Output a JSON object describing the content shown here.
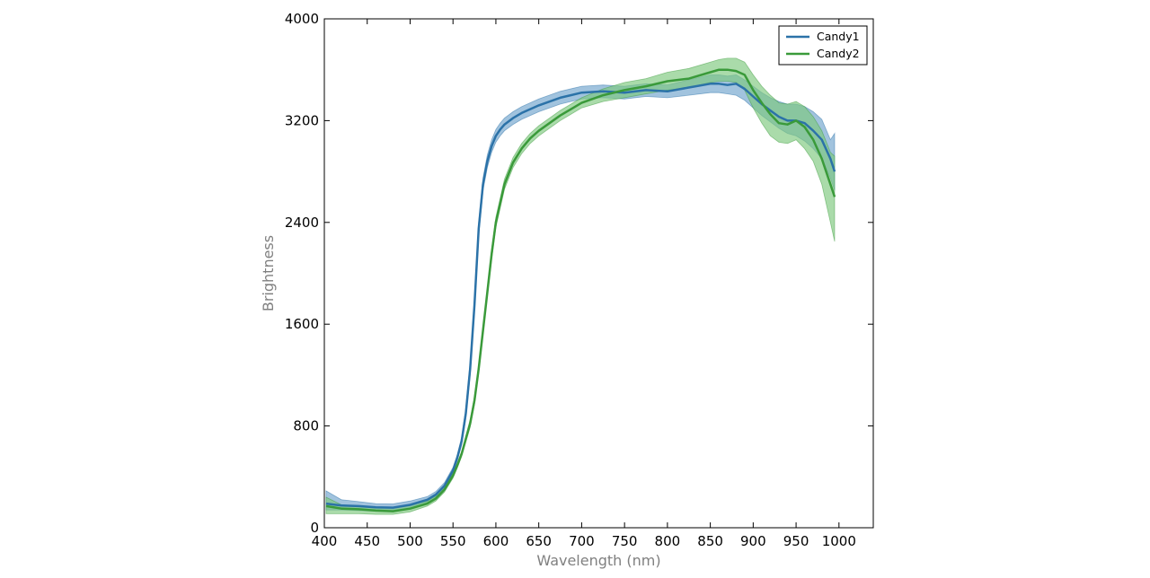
{
  "chart_data": {
    "type": "line",
    "title": "",
    "xlabel": "Wavelength (nm)",
    "ylabel": "Brightness",
    "xlim": [
      400,
      1040
    ],
    "ylim": [
      0,
      4000
    ],
    "x_ticks": [
      400,
      450,
      500,
      550,
      600,
      650,
      700,
      750,
      800,
      850,
      900,
      950,
      1000
    ],
    "y_ticks": [
      0,
      800,
      1600,
      2400,
      3200,
      4000
    ],
    "grid": false,
    "legend_position": "top-right",
    "band": "shaded band around each series line",
    "series": [
      {
        "name": "Candy1",
        "color": "#2b72a8",
        "band_color": "#6fa3cd",
        "x": [
          402,
          420,
          440,
          460,
          480,
          500,
          520,
          530,
          540,
          550,
          555,
          560,
          565,
          570,
          575,
          580,
          585,
          590,
          595,
          600,
          605,
          610,
          620,
          630,
          650,
          675,
          700,
          725,
          750,
          775,
          800,
          825,
          850,
          860,
          870,
          880,
          890,
          900,
          910,
          920,
          930,
          940,
          950,
          960,
          970,
          980,
          990,
          995
        ],
        "y": [
          190,
          175,
          170,
          160,
          158,
          180,
          220,
          260,
          330,
          450,
          550,
          680,
          900,
          1250,
          1750,
          2350,
          2700,
          2880,
          3000,
          3080,
          3130,
          3170,
          3220,
          3260,
          3320,
          3380,
          3420,
          3430,
          3420,
          3440,
          3430,
          3460,
          3490,
          3490,
          3480,
          3490,
          3450,
          3390,
          3330,
          3280,
          3230,
          3200,
          3200,
          3180,
          3120,
          3050,
          2900,
          2800
        ],
        "lower": [
          140,
          140,
          135,
          130,
          130,
          150,
          200,
          240,
          310,
          430,
          530,
          650,
          860,
          1200,
          1700,
          2300,
          2650,
          2830,
          2950,
          3030,
          3080,
          3120,
          3170,
          3210,
          3270,
          3330,
          3370,
          3380,
          3370,
          3390,
          3380,
          3400,
          3420,
          3420,
          3410,
          3400,
          3360,
          3300,
          3240,
          3190,
          3140,
          3100,
          3080,
          3040,
          2980,
          2900,
          2750,
          2650
        ],
        "upper": [
          290,
          220,
          205,
          190,
          188,
          210,
          245,
          285,
          355,
          475,
          575,
          710,
          940,
          1300,
          1800,
          2400,
          2750,
          2930,
          3050,
          3130,
          3180,
          3220,
          3270,
          3310,
          3370,
          3430,
          3470,
          3480,
          3470,
          3490,
          3480,
          3520,
          3560,
          3560,
          3550,
          3560,
          3520,
          3470,
          3420,
          3380,
          3350,
          3330,
          3330,
          3310,
          3270,
          3210,
          3050,
          3100
        ]
      },
      {
        "name": "Candy2",
        "color": "#3a9a3a",
        "band_color": "#7cc87c",
        "x": [
          402,
          420,
          440,
          460,
          480,
          500,
          520,
          530,
          540,
          550,
          555,
          560,
          570,
          575,
          580,
          585,
          590,
          595,
          600,
          610,
          620,
          630,
          640,
          650,
          675,
          700,
          725,
          750,
          775,
          800,
          825,
          850,
          860,
          870,
          880,
          890,
          900,
          910,
          920,
          930,
          940,
          950,
          960,
          970,
          980,
          990,
          995
        ],
        "y": [
          170,
          150,
          145,
          135,
          130,
          150,
          190,
          230,
          300,
          410,
          490,
          580,
          820,
          1000,
          1250,
          1550,
          1850,
          2150,
          2400,
          2700,
          2870,
          2980,
          3060,
          3120,
          3240,
          3340,
          3400,
          3440,
          3470,
          3510,
          3530,
          3580,
          3600,
          3600,
          3590,
          3560,
          3440,
          3340,
          3250,
          3180,
          3170,
          3200,
          3150,
          3050,
          2900,
          2700,
          2600
        ],
        "lower": [
          110,
          110,
          110,
          105,
          105,
          125,
          170,
          210,
          280,
          390,
          470,
          560,
          790,
          970,
          1220,
          1520,
          1820,
          2110,
          2360,
          2660,
          2830,
          2940,
          3020,
          3080,
          3200,
          3300,
          3350,
          3380,
          3410,
          3440,
          3460,
          3500,
          3510,
          3510,
          3500,
          3440,
          3300,
          3180,
          3080,
          3030,
          3020,
          3050,
          2980,
          2880,
          2700,
          2400,
          2250
        ],
        "upper": [
          240,
          180,
          170,
          160,
          155,
          175,
          210,
          250,
          320,
          430,
          510,
          600,
          850,
          1030,
          1280,
          1580,
          1880,
          2190,
          2440,
          2740,
          2910,
          3020,
          3100,
          3160,
          3280,
          3380,
          3450,
          3500,
          3530,
          3580,
          3610,
          3660,
          3680,
          3690,
          3690,
          3660,
          3560,
          3470,
          3400,
          3340,
          3330,
          3350,
          3310,
          3230,
          3120,
          2950,
          2920
        ]
      }
    ]
  }
}
